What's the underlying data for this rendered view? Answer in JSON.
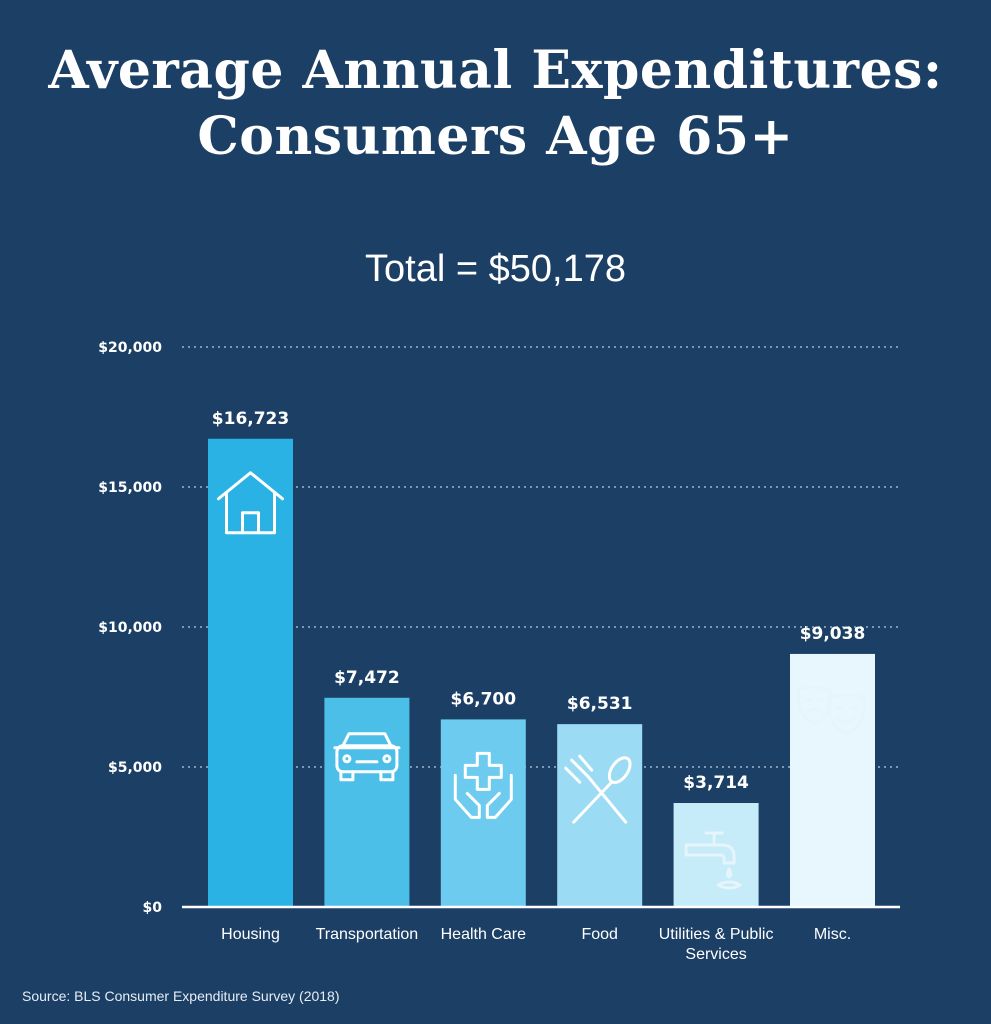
{
  "title_line1": "Average Annual Expenditures:",
  "title_line2": "Consumers Age 65+",
  "subtitle": "Total = $50,178",
  "source": "Source: BLS Consumer Expenditure Survey (2018)",
  "colors": {
    "background": "#1c3f66",
    "bars": [
      "#2bb2e4",
      "#4cbfe9",
      "#6ccbee",
      "#9bdbf3",
      "#c6ebf9",
      "#e7f7fd"
    ],
    "icon_stroke_dark": "#ffffff",
    "icon_stroke_light": "#e6f4fb"
  },
  "chart_data": {
    "type": "bar",
    "categories": [
      "Housing",
      "Transportation",
      "Health Care",
      "Food",
      "Utilities & Public Services",
      "Misc."
    ],
    "category_lines": [
      [
        "Housing"
      ],
      [
        "Transportation"
      ],
      [
        "Health Care"
      ],
      [
        "Food"
      ],
      [
        "Utilities & Public",
        "Services"
      ],
      [
        "Misc."
      ]
    ],
    "values": [
      16723,
      7472,
      6700,
      6531,
      3714,
      9038
    ],
    "value_labels": [
      "$16,723",
      "$7,472",
      "$6,700",
      "$6,531",
      "$3,714",
      "$9,038"
    ],
    "icons": [
      "house-icon",
      "car-icon",
      "health-care-icon",
      "fork-spoon-icon",
      "faucet-icon",
      "theater-masks-icon"
    ],
    "yticks": [
      0,
      5000,
      10000,
      15000,
      20000
    ],
    "ytick_labels": [
      "$0",
      "$5,000",
      "$10,000",
      "$15,000",
      "$20,000"
    ],
    "ylim": [
      0,
      20000
    ],
    "grid": true
  }
}
